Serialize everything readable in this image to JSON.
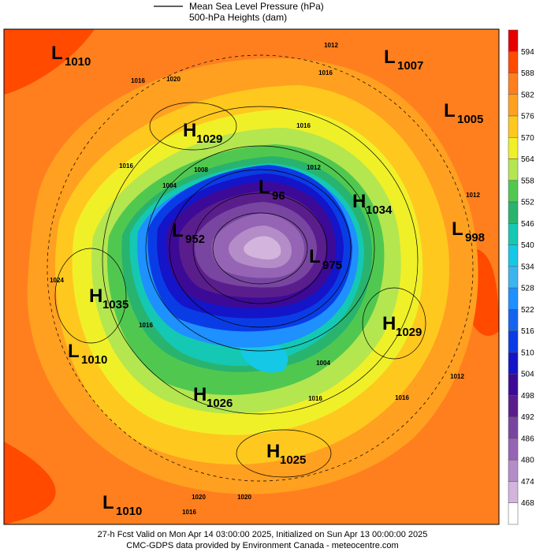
{
  "header": {
    "legend_lines": [
      "Mean Sea Level Pressure (hPa)",
      "500-hPa Heights (dam)"
    ]
  },
  "centers": [
    {
      "letter": "L",
      "value": "1010"
    },
    {
      "letter": "L",
      "value": "1007"
    },
    {
      "letter": "L",
      "value": "1005"
    },
    {
      "letter": "H",
      "value": "1029"
    },
    {
      "letter": "L",
      "value": "96"
    },
    {
      "letter": "H",
      "value": "1034"
    },
    {
      "letter": "L",
      "value": "952"
    },
    {
      "letter": "L",
      "value": "998"
    },
    {
      "letter": "L",
      "value": "975"
    },
    {
      "letter": "H",
      "value": "1035"
    },
    {
      "letter": "H",
      "value": "1029"
    },
    {
      "letter": "L",
      "value": "1010"
    },
    {
      "letter": "H",
      "value": "1026"
    },
    {
      "letter": "H",
      "value": "1025"
    },
    {
      "letter": "L",
      "value": "1010"
    }
  ],
  "contour_labels": [
    "1016",
    "1020",
    "1016",
    "1012",
    "1016",
    "1012",
    "1008",
    "1004",
    "1016",
    "1024",
    "1016",
    "1004",
    "1016",
    "1020",
    "1020",
    "1016",
    "1012",
    "1016",
    "1012"
  ],
  "colorbar": {
    "labels": [
      594,
      588,
      582,
      576,
      570,
      564,
      558,
      552,
      546,
      540,
      534,
      528,
      522,
      516,
      510,
      504,
      498,
      492,
      486,
      480,
      474,
      468
    ],
    "colors": [
      "#e60000",
      "#ff4a00",
      "#ff7f1e",
      "#ffa020",
      "#ffc81e",
      "#f0f028",
      "#b4e650",
      "#50c850",
      "#28b46e",
      "#14c8b4",
      "#14c8e6",
      "#3cb4f0",
      "#1e90ff",
      "#1464f0",
      "#0a3ce6",
      "#1414c8",
      "#3c0a96",
      "#5a1e8c",
      "#7846a0",
      "#9664b4",
      "#b48cc8",
      "#d2b4dc",
      "#ffffff"
    ]
  },
  "footer": [
    "27-h Fcst Valid on Mon Apr 14 03:00:00 2025, Initialized on Sun Apr 13 00:00:00 2025",
    "CMC-GDPS data provided by Environment Canada - meteocentre.com"
  ]
}
